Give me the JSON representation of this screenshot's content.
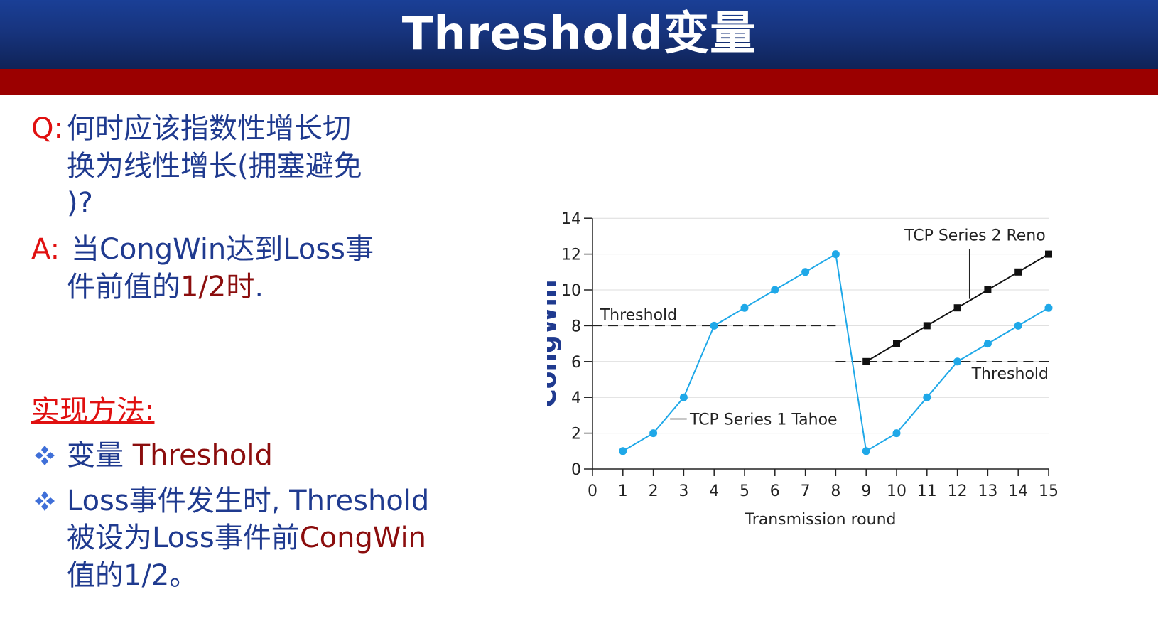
{
  "slide": {
    "title": "Threshold变量",
    "q_label": "Q:",
    "q_line1": "何时应该指数性增长切",
    "q_line2": "换为线性增长(拥塞避免",
    "q_line3": ")?",
    "a_label": "A:",
    "a_line1": "当CongWin达到Loss事",
    "a_line2_part1": "件前值的",
    "a_line2_part2": "1/2时",
    "a_line2_part3": ".",
    "method_heading": "实现方法:",
    "bullet1_part1": "变量",
    "bullet1_part2": "Threshold",
    "bullet2_line1": "Loss事件发生时, Threshold",
    "bullet2_line2_part1": "被设为Loss事件前",
    "bullet2_line2_part2": "CongWin",
    "bullet2_line3": "值的1/2。",
    "colors": {
      "title_bar": "#17347e",
      "red_band": "#9b0000",
      "q_a_label": "#e01010",
      "body_text": "#1f3a8f",
      "highlight_text": "#8b0d0d",
      "bullet": "#3f6fd8"
    },
    "bullet_icon": "four-diamond-bullet-icon"
  },
  "chart_data": {
    "type": "line",
    "xlabel": "Transmission round",
    "ylabel": "CongWin",
    "xlim": [
      0,
      15
    ],
    "ylim": [
      0,
      14
    ],
    "xticks": [
      0,
      1,
      2,
      3,
      4,
      5,
      6,
      7,
      8,
      9,
      10,
      11,
      12,
      13,
      14,
      15
    ],
    "yticks": [
      0,
      2,
      4,
      6,
      8,
      10,
      12,
      14
    ],
    "grid": true,
    "series": [
      {
        "name": "TCP Series 1 Tahoe",
        "color": "#1fa8e8",
        "x": [
          1,
          2,
          3,
          4,
          5,
          6,
          7,
          8,
          9,
          10,
          11,
          12,
          13,
          14,
          15
        ],
        "y": [
          1,
          2,
          4,
          8,
          9,
          10,
          11,
          12,
          1,
          2,
          4,
          6,
          7,
          8,
          9
        ]
      },
      {
        "name": "TCP Series 2 Reno",
        "color": "#111111",
        "x": [
          9,
          10,
          11,
          12,
          13,
          14,
          15
        ],
        "y": [
          6,
          7,
          8,
          9,
          10,
          11,
          12
        ]
      }
    ],
    "thresholds": [
      {
        "label": "Threshold",
        "y": 8,
        "x_from": 0,
        "x_to": 8
      },
      {
        "label": "Threshold",
        "y": 6,
        "x_from": 8,
        "x_to": 15
      }
    ]
  }
}
